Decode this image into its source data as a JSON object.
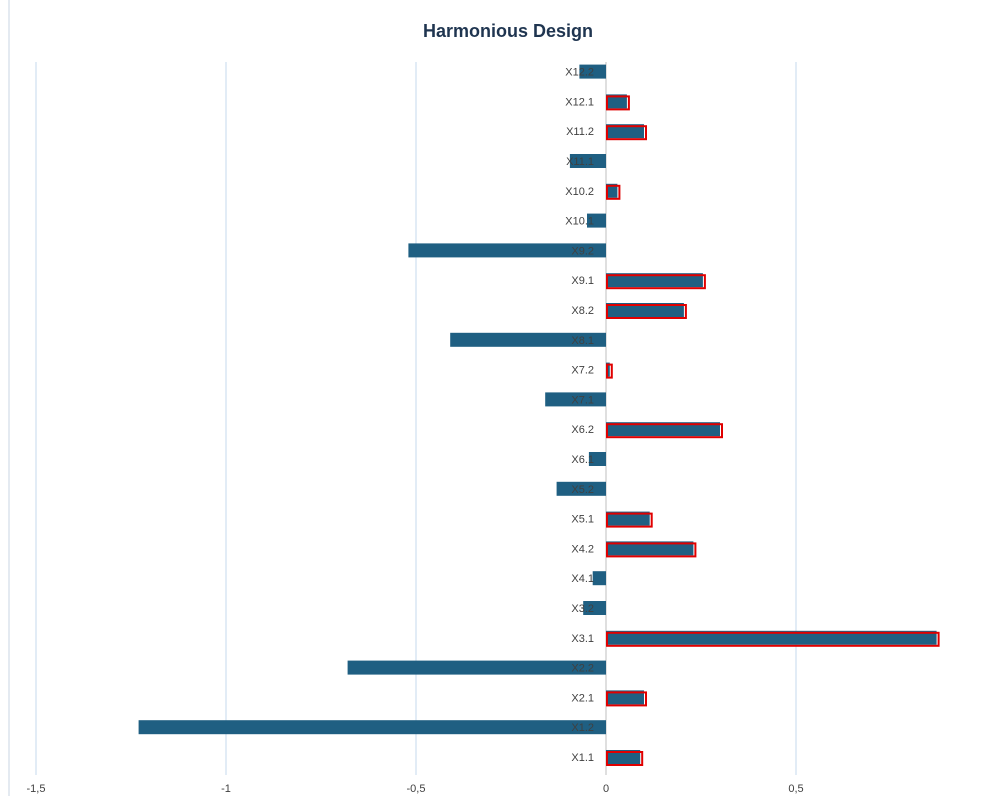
{
  "chart_data": {
    "type": "bar",
    "orientation": "horizontal",
    "title": "Harmonious Design",
    "xlabel": "",
    "ylabel": "",
    "xlim": [
      -1.5,
      1.0
    ],
    "x_ticks": [
      -1.5,
      -1,
      -0.5,
      0,
      0.5
    ],
    "x_tick_labels": [
      "-1,5",
      "-1",
      "-0,5",
      "0",
      "0,5"
    ],
    "grid": "vertical",
    "bar_color": "#1f5f82",
    "highlight_color": "#e00000",
    "categories": [
      "X1.1",
      "X1.2",
      "X2.1",
      "X2.2",
      "X3.1",
      "X3.2",
      "X4.1",
      "X4.2",
      "X5.1",
      "X5.2",
      "X6.1",
      "X6.2",
      "X7.1",
      "X7.2",
      "X8.1",
      "X8.2",
      "X9.1",
      "X9.2",
      "X10.1",
      "X10.2",
      "X11.1",
      "X11.2",
      "X12.1",
      "X12.2"
    ],
    "values": [
      0.09,
      -1.23,
      0.1,
      -0.68,
      0.87,
      -0.06,
      -0.035,
      0.23,
      0.115,
      -0.13,
      -0.045,
      0.3,
      -0.16,
      0.01,
      -0.41,
      0.205,
      0.255,
      -0.52,
      -0.05,
      0.03,
      -0.095,
      0.1,
      0.055,
      -0.07
    ],
    "highlighted": [
      "X1.1",
      "X2.1",
      "X3.1",
      "X4.2",
      "X5.1",
      "X6.2",
      "X7.2",
      "X8.2",
      "X9.1",
      "X10.2",
      "X11.2",
      "X12.1"
    ]
  }
}
